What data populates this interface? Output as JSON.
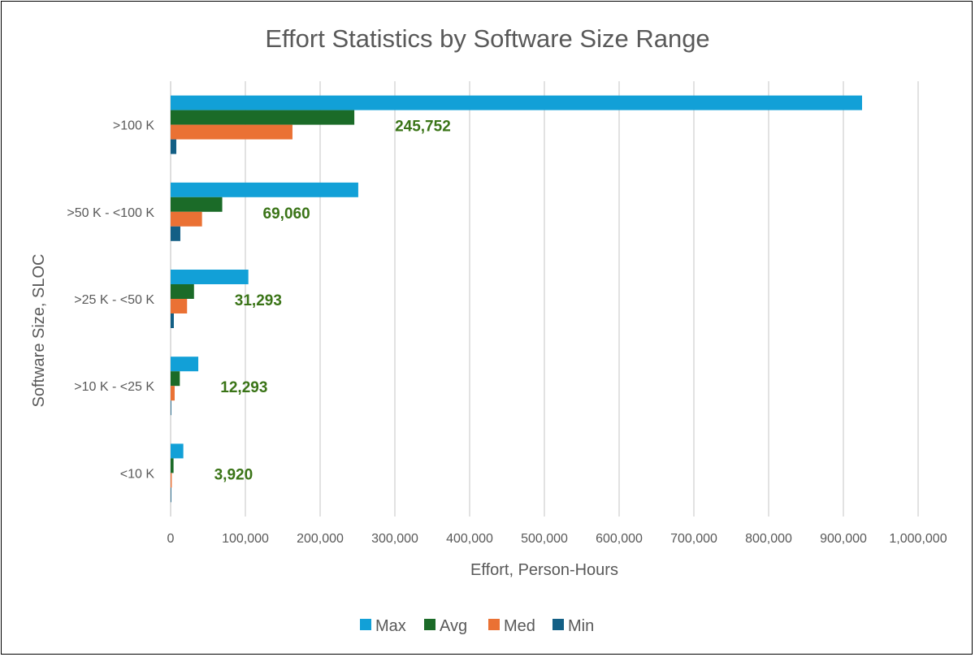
{
  "chart_data": {
    "type": "bar",
    "orientation": "horizontal",
    "title": "Effort Statistics by Software Size Range",
    "xlabel": "Effort, Person-Hours",
    "ylabel": "Software Size, SLOC",
    "categories": [
      ">100 K",
      ">50 K - <100 K",
      ">25 K - <50 K",
      ">10 K - <25 K",
      "<10 K"
    ],
    "xlim": [
      0,
      1000000
    ],
    "xticks": [
      "0",
      "100,000",
      "200,000",
      "300,000",
      "400,000",
      "500,000",
      "600,000",
      "700,000",
      "800,000",
      "900,000",
      "1,000,000"
    ],
    "grid": "vertical",
    "legend_position": "bottom",
    "series": [
      {
        "name": "Max",
        "color": "#12a0d7",
        "values": [
          925000,
          251000,
          104000,
          37000,
          17000
        ]
      },
      {
        "name": "Avg",
        "color": "#1b6b28",
        "values": [
          245752,
          69060,
          31293,
          12293,
          3920
        ]
      },
      {
        "name": "Med",
        "color": "#ea7134",
        "values": [
          163000,
          42000,
          22000,
          5400,
          1500
        ]
      },
      {
        "name": "Min",
        "color": "#135f85",
        "values": [
          7600,
          13000,
          4300,
          800,
          400
        ]
      }
    ],
    "data_labels": [
      "245,752",
      "69,060",
      "31,293",
      "12,293",
      "3,920"
    ]
  }
}
